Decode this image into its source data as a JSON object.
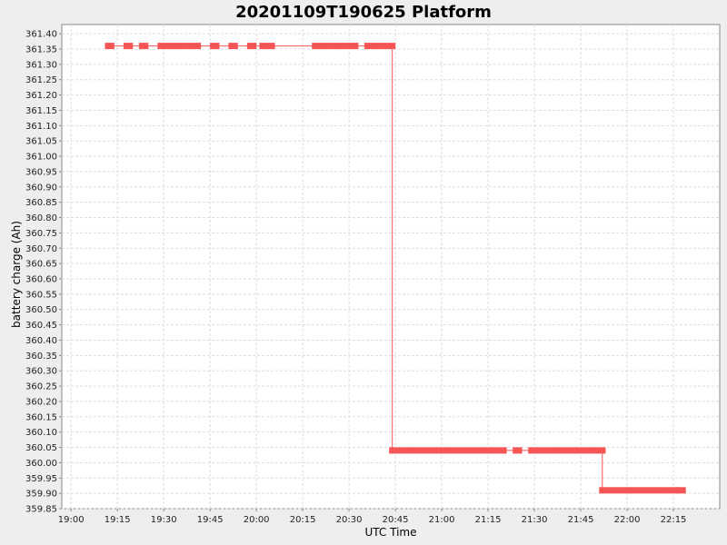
{
  "chart_data": {
    "type": "line",
    "title": "20201109T190625 Platform",
    "xlabel": "UTC Time",
    "ylabel": "battery charge (Ah)",
    "x_tick_labels": [
      "19:00",
      "19:15",
      "19:30",
      "19:45",
      "20:00",
      "20:15",
      "20:30",
      "20:45",
      "21:00",
      "21:15",
      "21:30",
      "21:45",
      "22:00",
      "22:15"
    ],
    "y_tick_labels": [
      "359.85",
      "359.90",
      "359.95",
      "360.00",
      "360.05",
      "360.10",
      "360.15",
      "360.20",
      "360.25",
      "360.30",
      "360.35",
      "360.40",
      "360.45",
      "360.50",
      "360.55",
      "360.60",
      "360.65",
      "360.70",
      "360.75",
      "360.80",
      "360.85",
      "360.90",
      "360.95",
      "361.00",
      "361.05",
      "361.10",
      "361.15",
      "361.20",
      "361.25",
      "361.30",
      "361.35",
      "361.40"
    ],
    "xlim": [
      "18:57",
      "22:30"
    ],
    "ylim": [
      359.85,
      361.43
    ],
    "grid": true,
    "series": [
      {
        "color": "#f55555",
        "line": [
          [
            "19:12",
            361.36
          ],
          [
            "20:44",
            361.36
          ],
          [
            "20:44",
            360.04
          ],
          [
            "21:52",
            360.04
          ],
          [
            "21:52",
            359.91
          ],
          [
            "22:18",
            359.91
          ]
        ],
        "marker_segments": [
          [
            "19:12",
            "19:13",
            361.36
          ],
          [
            "19:18",
            "19:19",
            361.36
          ],
          [
            "19:23",
            "19:24",
            361.36
          ],
          [
            "19:29",
            "19:41",
            361.36
          ],
          [
            "19:46",
            "19:47",
            361.36
          ],
          [
            "19:52",
            "19:53",
            361.36
          ],
          [
            "19:58",
            "19:59",
            361.36
          ],
          [
            "20:02",
            "20:05",
            361.36
          ],
          [
            "20:19",
            "20:32",
            361.36
          ],
          [
            "20:36",
            "20:44",
            361.36
          ],
          [
            "20:44",
            "21:20",
            360.04
          ],
          [
            "21:24",
            "21:25",
            360.04
          ],
          [
            "21:29",
            "21:52",
            360.04
          ],
          [
            "21:52",
            "22:16",
            359.91
          ],
          [
            "22:17",
            "22:18",
            359.91
          ]
        ]
      }
    ]
  }
}
